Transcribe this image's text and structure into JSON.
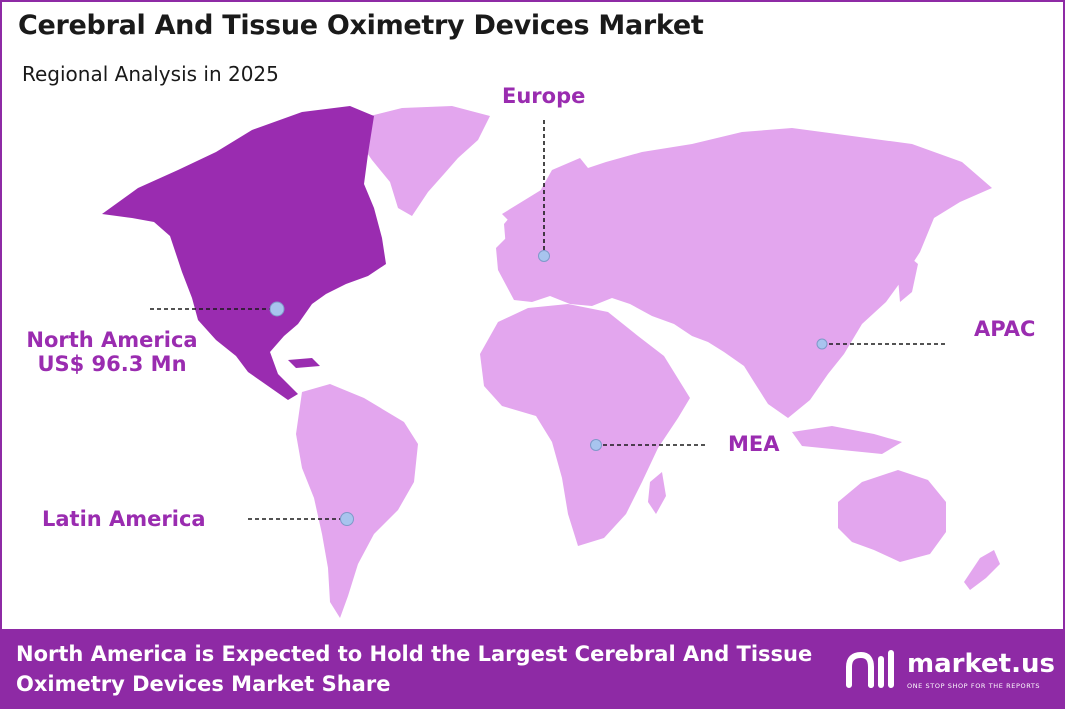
{
  "header": {
    "title": "Cerebral And Tissue Oximetry Devices Market",
    "subtitle": "Regional Analysis in 2025"
  },
  "regions": {
    "north_america": {
      "name": "North America",
      "value": "US$ 96.3 Mn"
    },
    "europe": {
      "name": "Europe"
    },
    "apac": {
      "name": "APAC"
    },
    "mea": {
      "name": "MEA"
    },
    "latin_america": {
      "name": "Latin America"
    }
  },
  "footer": {
    "statement": "North America is Expected to Hold the Largest Cerebral And Tissue Oximetry Devices Market Share",
    "brand_name": "market.us",
    "brand_tagline": "ONE STOP SHOP FOR THE REPORTS"
  },
  "colors": {
    "highlight_region": "#9a2cb0",
    "other_regions": "#e3a6ee",
    "accent": "#8e2aa5",
    "marker": "#a8c4ee"
  }
}
